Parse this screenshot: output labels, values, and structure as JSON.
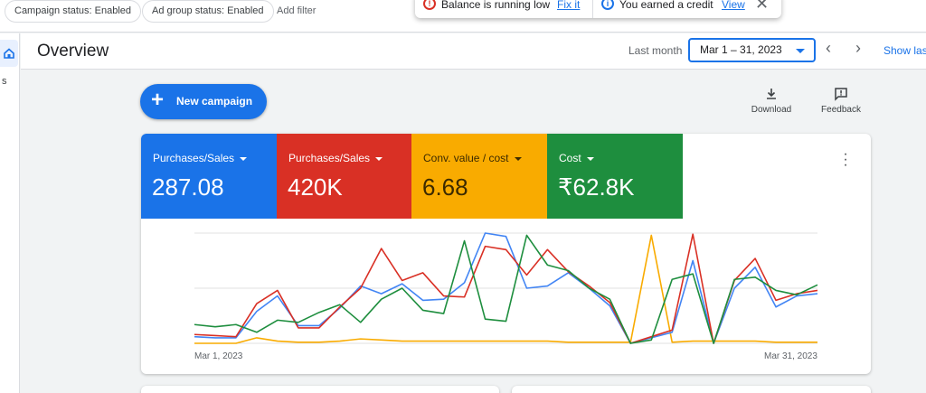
{
  "filters": {
    "campaign_status": "Campaign status: Enabled",
    "ad_group_status": "Ad group status: Enabled",
    "add_filter": "Add filter"
  },
  "notifications": {
    "balance_text": "Balance is running low",
    "balance_link": "Fix it",
    "credit_text": "You earned a credit",
    "credit_link": "View"
  },
  "sidebar": {
    "label_fragment": "s"
  },
  "header": {
    "title": "Overview",
    "date_label": "Last month",
    "date_range": "Mar 1 – 31, 2023",
    "show_last": "Show las"
  },
  "actions": {
    "new_campaign": "New campaign",
    "download": "Download",
    "feedback": "Feedback"
  },
  "metrics": [
    {
      "label": "Purchases/Sales",
      "value": "287.08",
      "color": "#1a73e8"
    },
    {
      "label": "Purchases/Sales",
      "value": "420K",
      "color": "#d93025"
    },
    {
      "label": "Conv. value / cost",
      "value": "6.68",
      "color": "#f9ab00"
    },
    {
      "label": "Cost",
      "value": "₹62.8K",
      "color": "#1e8e3e"
    }
  ],
  "chart_data": {
    "type": "line",
    "x_start_label": "Mar 1, 2023",
    "x_end_label": "Mar 31, 2023",
    "x": [
      1,
      2,
      3,
      4,
      5,
      6,
      7,
      8,
      9,
      10,
      11,
      12,
      13,
      14,
      15,
      16,
      17,
      18,
      19,
      20,
      21,
      22,
      23,
      24,
      25,
      26,
      27,
      28,
      29,
      30,
      31
    ],
    "ylim": [
      0,
      100
    ],
    "grid": true,
    "series": [
      {
        "color": "#4285f4",
        "values": [
          6,
          5,
          5,
          29,
          43,
          16,
          16,
          32,
          52,
          45,
          54,
          39,
          40,
          55,
          100,
          97,
          50,
          52,
          64,
          50,
          34,
          0,
          5,
          10,
          75,
          0,
          50,
          69,
          33,
          43,
          45
        ]
      },
      {
        "color": "#d93025",
        "values": [
          8,
          7,
          6,
          36,
          48,
          14,
          14,
          33,
          50,
          86,
          57,
          64,
          43,
          42,
          88,
          85,
          62,
          85,
          65,
          52,
          37,
          0,
          6,
          12,
          99,
          0,
          57,
          77,
          39,
          45,
          48
        ]
      },
      {
        "color": "#f9ab00",
        "values": [
          0,
          0,
          0,
          5,
          2,
          1,
          1,
          2,
          4,
          3,
          2,
          2,
          2,
          2,
          2,
          2,
          2,
          2,
          1,
          1,
          1,
          1,
          98,
          1,
          2,
          2,
          2,
          2,
          1,
          1,
          1
        ]
      },
      {
        "color": "#1e8e3e",
        "values": [
          17,
          15,
          17,
          10,
          21,
          19,
          28,
          35,
          19,
          40,
          50,
          30,
          27,
          93,
          22,
          20,
          98,
          71,
          66,
          50,
          40,
          0,
          3,
          58,
          63,
          0,
          58,
          60,
          48,
          44,
          53
        ]
      }
    ]
  }
}
